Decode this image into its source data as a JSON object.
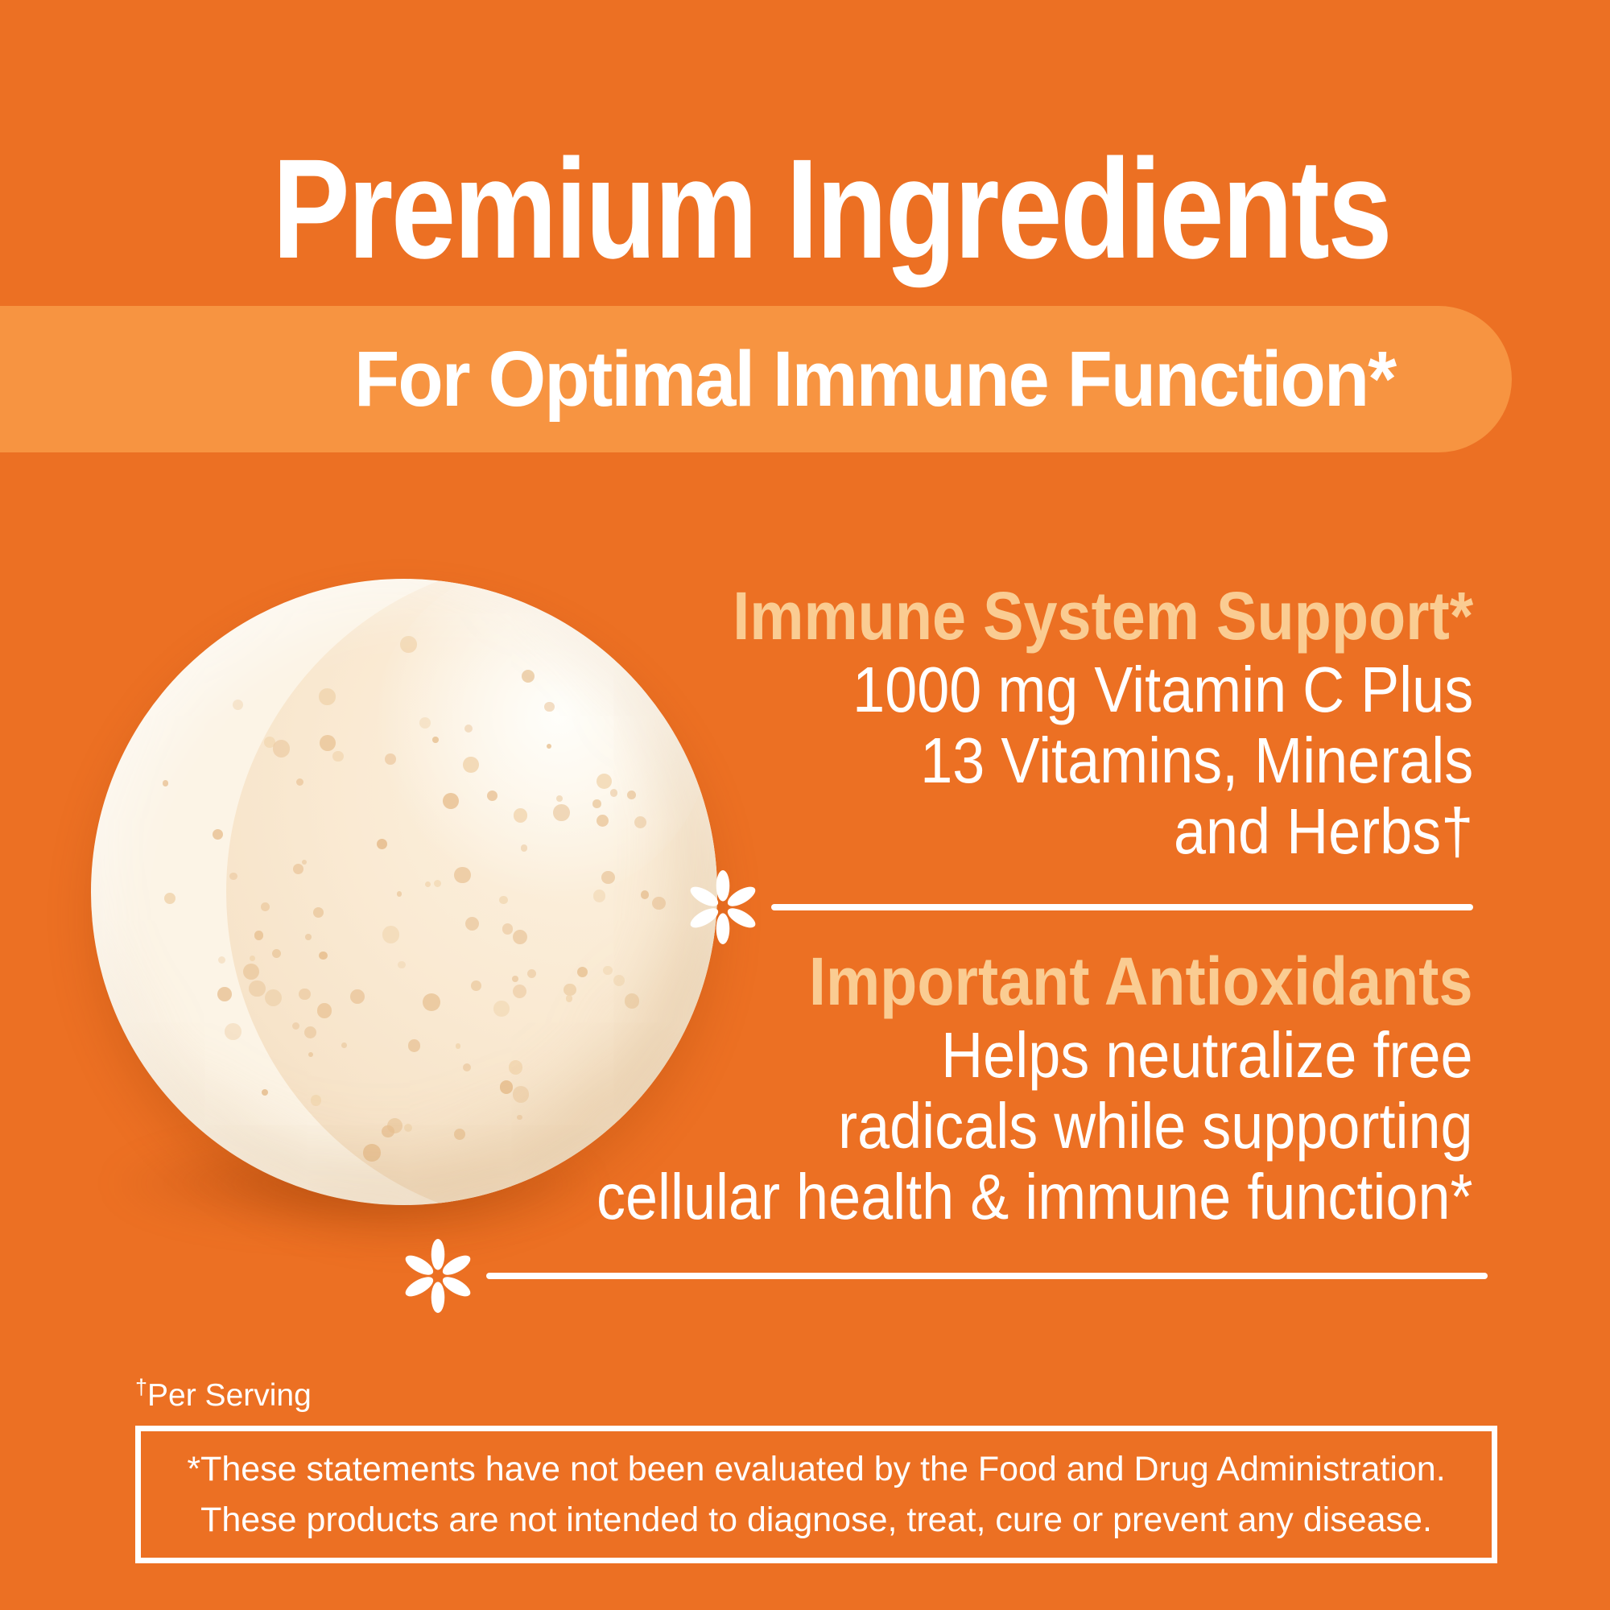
{
  "title": "Premium Ingredients",
  "banner": {
    "text": "For Optimal Immune Function*"
  },
  "sections": [
    {
      "heading": "Immune System Support*",
      "lines": [
        "1000 mg Vitamin C Plus",
        "13 Vitamins, Minerals",
        "and Herbs†"
      ]
    },
    {
      "heading": "Important Antioxidants",
      "lines": [
        "Helps neutralize free",
        "radicals while supporting",
        "cellular health & immune function*"
      ]
    }
  ],
  "footnote": {
    "dagger": "†",
    "text": "Per Serving"
  },
  "disclaimer": {
    "lines": [
      "*These statements have not been evaluated by the Food and Drug Administration.",
      "These products are not intended to diagnose, treat, cure or prevent any disease."
    ]
  },
  "colors": {
    "background": "#EC7023",
    "banner": "#F79441",
    "heading_accent": "#FACC92",
    "text": "#FFFFFF",
    "tablet_base": "#FAEAD3",
    "tablet_crescent": "#FCF4E6",
    "speckle": "#EAC79C"
  }
}
